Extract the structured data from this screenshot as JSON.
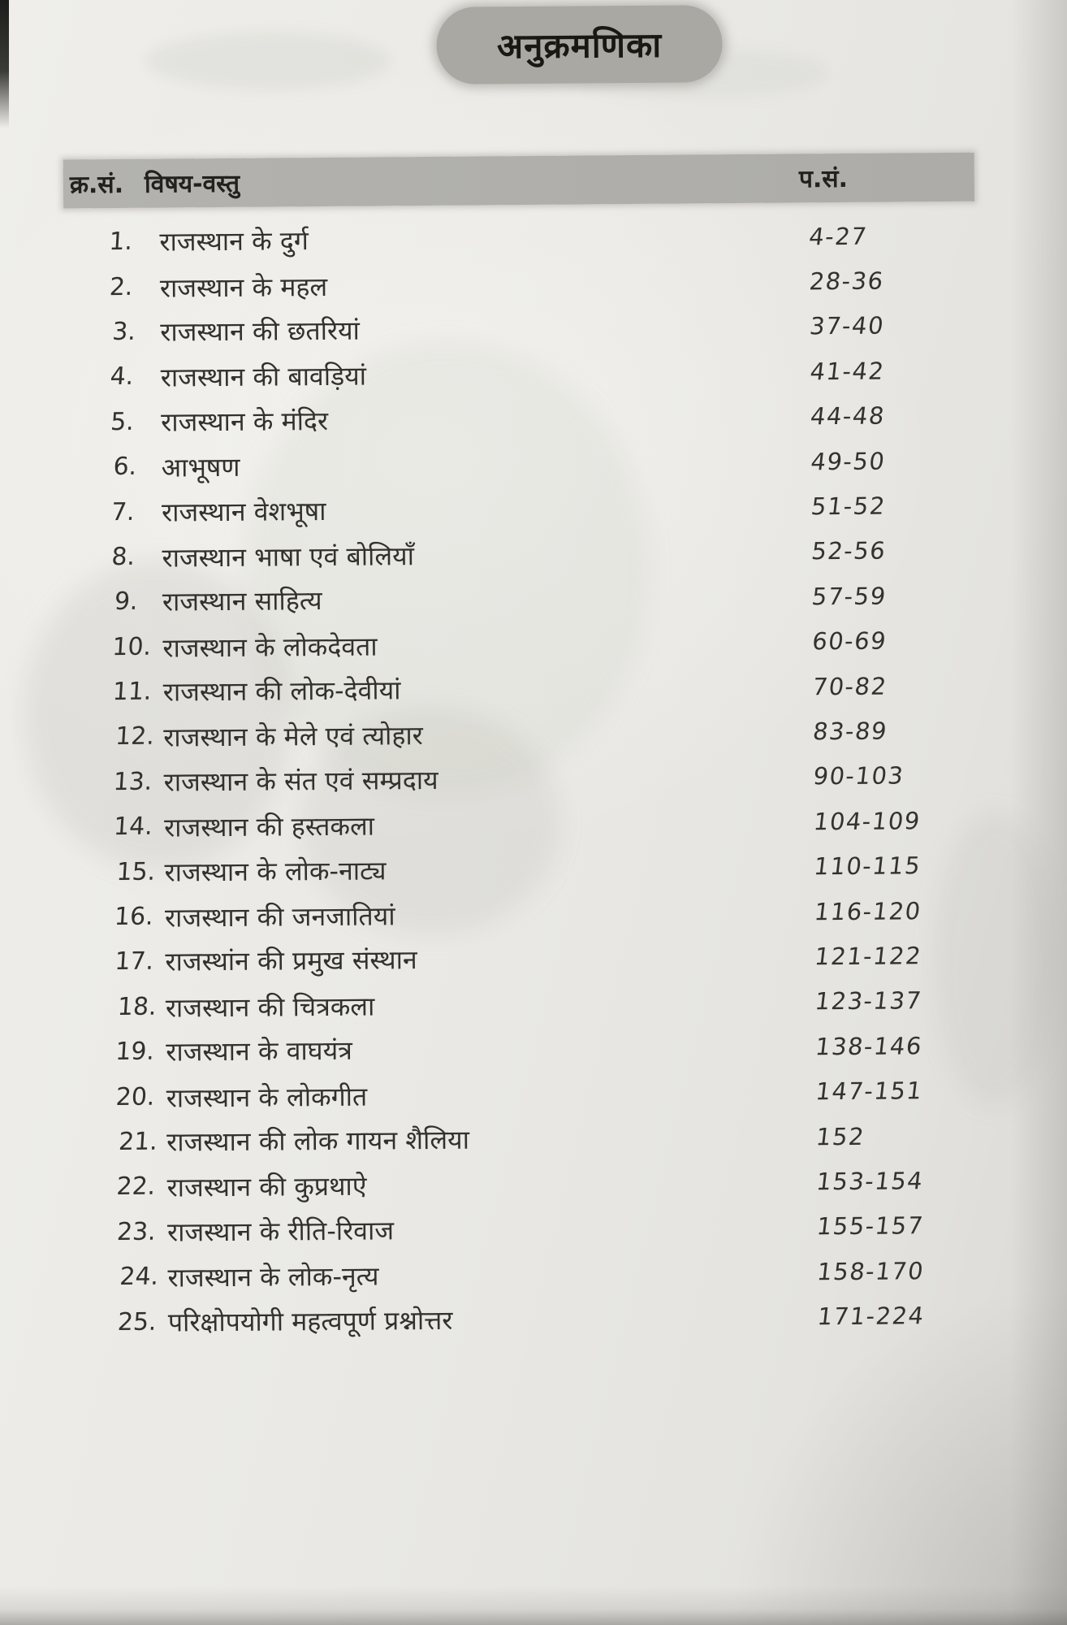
{
  "page": {
    "title": "अनुक्रमणिका"
  },
  "colors": {
    "paper": "#eae9e5",
    "header_bar": "#b2b1ad",
    "title_pill": "#a9a8a3",
    "ink": "#34322d"
  },
  "table": {
    "headers": {
      "serial": "क्र.सं.",
      "subject": "विषय-वस्तु",
      "page": "प.सं."
    },
    "rows": [
      {
        "sn": "1.",
        "title": "राजस्थान के दुर्ग",
        "pages": "4-27"
      },
      {
        "sn": "2.",
        "title": "राजस्थान के महल",
        "pages": "28-36"
      },
      {
        "sn": "3.",
        "title": "राजस्थान की छतरियां",
        "pages": "37-40"
      },
      {
        "sn": "4.",
        "title": "राजस्थान की बावड़ियां",
        "pages": "41-42"
      },
      {
        "sn": "5.",
        "title": "राजस्थान के मंदिर",
        "pages": "44-48"
      },
      {
        "sn": "6.",
        "title": "आभूषण",
        "pages": "49-50"
      },
      {
        "sn": "7.",
        "title": "राजस्थान वेशभूषा",
        "pages": "51-52"
      },
      {
        "sn": "8.",
        "title": "राजस्थान भाषा एवं बोलियाँ",
        "pages": "52-56"
      },
      {
        "sn": "9.",
        "title": "राजस्थान साहित्य",
        "pages": "57-59"
      },
      {
        "sn": "10.",
        "title": "राजस्थान के लोकदेवता",
        "pages": "60-69"
      },
      {
        "sn": "11.",
        "title": "राजस्थान की लोक-देवीयां",
        "pages": "70-82"
      },
      {
        "sn": "12.",
        "title": "राजस्थान के मेले एवं त्योहार",
        "pages": "83-89"
      },
      {
        "sn": "13.",
        "title": "राजस्थान के संत एवं सम्प्रदाय",
        "pages": "90-103"
      },
      {
        "sn": "14.",
        "title": "राजस्थान की हस्तकला",
        "pages": "104-109"
      },
      {
        "sn": "15.",
        "title": "राजस्थान के लोक-नाट्य",
        "pages": "110-115"
      },
      {
        "sn": "16.",
        "title": "राजस्थान की जनजातियां",
        "pages": "116-120"
      },
      {
        "sn": "17.",
        "title": "राजस्थांन की प्रमुख संस्थान",
        "pages": "121-122"
      },
      {
        "sn": "18.",
        "title": "राजस्थान की चित्रकला",
        "pages": "123-137"
      },
      {
        "sn": "19.",
        "title": "राजस्थान के वाघयंत्र",
        "pages": "138-146"
      },
      {
        "sn": "20.",
        "title": "राजस्थान के लोकगीत",
        "pages": "147-151"
      },
      {
        "sn": "21.",
        "title": "राजस्थान की लोक गायन शैलिया",
        "pages": "152"
      },
      {
        "sn": "22.",
        "title": "राजस्थान की कुप्रथाऐ",
        "pages": "153-154"
      },
      {
        "sn": "23.",
        "title": "राजस्थान के रीति-रिवाज",
        "pages": "155-157"
      },
      {
        "sn": "24.",
        "title": "राजस्थान के लोक-नृत्य",
        "pages": "158-170"
      },
      {
        "sn": "25.",
        "title": "परिक्षोपयोगी महत्वपूर्ण प्रश्नोत्तर",
        "pages": "171-224"
      }
    ]
  }
}
